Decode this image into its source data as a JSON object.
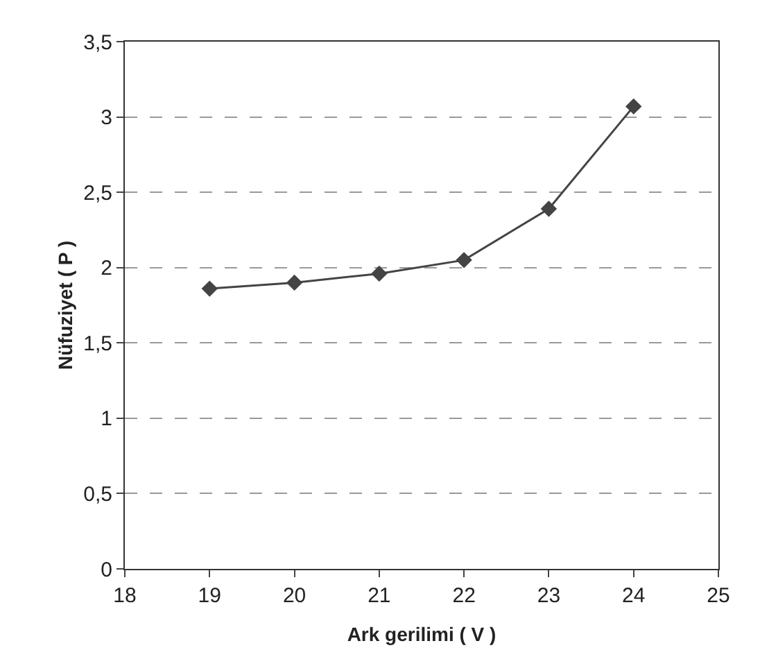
{
  "chart_data": {
    "type": "line",
    "xlabel": "Ark gerilimi ( V )",
    "ylabel": "Nüfuziyet ( P )",
    "x": [
      19,
      20,
      21,
      22,
      23,
      24
    ],
    "series": [
      {
        "color": "#444444",
        "values": [
          1.86,
          1.9,
          1.96,
          2.05,
          2.39,
          3.07
        ]
      }
    ],
    "xlim": [
      18,
      25
    ],
    "xticks": [
      18,
      19,
      20,
      21,
      22,
      23,
      24,
      25
    ],
    "ylim": [
      0,
      3.5
    ],
    "yticks": [
      0,
      {
        "value": 0.5,
        "label": "0,5"
      },
      1,
      {
        "value": 1.5,
        "label": "1,5"
      },
      2,
      {
        "value": 2.5,
        "label": "2,5"
      },
      3,
      {
        "value": 3.5,
        "label": "3,5"
      }
    ],
    "grid": "y",
    "marker": "diamond",
    "line_style": "solid"
  }
}
